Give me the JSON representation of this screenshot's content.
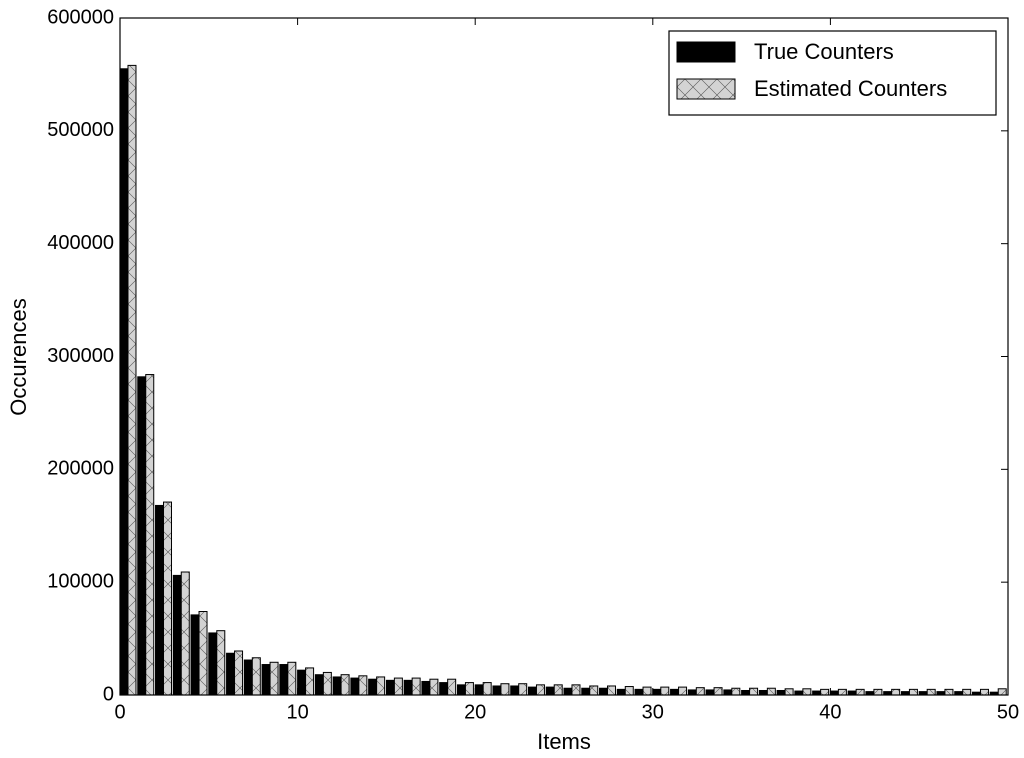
{
  "chart_data": {
    "type": "grouped-bar",
    "xlabel": "Items",
    "ylabel": "Occurences",
    "x": [
      0,
      1,
      2,
      3,
      4,
      5,
      6,
      7,
      8,
      9,
      10,
      11,
      12,
      13,
      14,
      15,
      16,
      17,
      18,
      19,
      20,
      21,
      22,
      23,
      24,
      25,
      26,
      27,
      28,
      29,
      30,
      31,
      32,
      33,
      34,
      35,
      36,
      37,
      38,
      39,
      40,
      41,
      42,
      43,
      44,
      45,
      46,
      47,
      48,
      49
    ],
    "series": [
      {
        "name": "True Counters",
        "color": "#000000",
        "hatch": "none",
        "values": [
          555000,
          282000,
          168000,
          106000,
          71000,
          55000,
          37000,
          31000,
          27000,
          27000,
          22000,
          18000,
          16000,
          15000,
          14000,
          13000,
          13000,
          12000,
          11000,
          9000,
          9000,
          8000,
          8000,
          7000,
          7000,
          6000,
          6000,
          6000,
          5000,
          5000,
          5000,
          5000,
          4500,
          4500,
          4500,
          4000,
          4000,
          4000,
          3500,
          3500,
          3500,
          3500,
          3000,
          3000,
          3000,
          3000,
          3000,
          3000,
          2500,
          2500
        ]
      },
      {
        "name": "Estimated Counters",
        "color": "#d3d3d3",
        "hatch": "x",
        "values": [
          558000,
          284000,
          171000,
          109000,
          74000,
          57000,
          39000,
          33000,
          29000,
          29000,
          24000,
          20000,
          18000,
          17000,
          16000,
          15000,
          15000,
          14000,
          14000,
          11000,
          11000,
          10000,
          10000,
          9000,
          9000,
          9000,
          8000,
          8000,
          7500,
          7000,
          7000,
          7000,
          6500,
          6500,
          6000,
          6000,
          6000,
          5500,
          5500,
          5000,
          5000,
          5000,
          5000,
          5000,
          5000,
          5000,
          5000,
          5000,
          5000,
          5500
        ]
      }
    ],
    "xlim": [
      0,
      50
    ],
    "xticks": [
      0,
      10,
      20,
      30,
      40,
      50
    ],
    "ylim": [
      0,
      600000
    ],
    "yticks": [
      0,
      100000,
      200000,
      300000,
      400000,
      500000,
      600000
    ],
    "grid": false,
    "legend": "upper right"
  }
}
